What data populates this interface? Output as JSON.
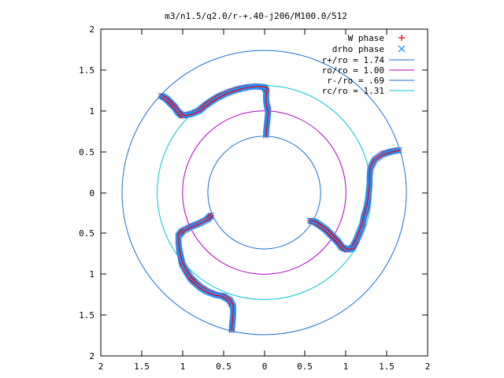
{
  "chart_data": {
    "type": "scatter",
    "title": "m3/n1.5/q2.0/r-+.40-j206/M100.0/512",
    "xlim": [
      -2,
      2
    ],
    "ylim": [
      -2,
      2
    ],
    "x_tick_labels": [
      "2",
      "1.5",
      "1",
      "0.5",
      "0",
      "0.5",
      "1",
      "1.5",
      "2"
    ],
    "x_tick_values": [
      -2,
      -1.5,
      -1,
      -0.5,
      0,
      0.5,
      1,
      1.5,
      2
    ],
    "y_tick_labels": [
      "2",
      "1.5",
      "1",
      "0.5",
      "0",
      "0.5",
      "1",
      "1.5",
      "2"
    ],
    "y_tick_values": [
      2,
      1.5,
      1,
      0.5,
      0,
      -0.5,
      -1,
      -1.5,
      -2
    ],
    "grid": false,
    "legend_position": "top-right",
    "legend": [
      {
        "label": "W phase",
        "marker": "plus",
        "color": "#ff0000"
      },
      {
        "label": "drho phase",
        "marker": "cross",
        "color": "#1e90ff"
      },
      {
        "label": "r+/ro = 1.74",
        "marker": "line",
        "color": "#1a6fd1"
      },
      {
        "label": "ro/ro = 1.00",
        "marker": "line",
        "color": "#b000c0"
      },
      {
        "label": "r-/ro = .69",
        "marker": "line",
        "color": "#1a6fd1"
      },
      {
        "label": "rc/ro = 1.31",
        "marker": "line",
        "color": "#00c8d0"
      }
    ],
    "circles": [
      {
        "name": "r+/ro",
        "radius": 1.74,
        "color": "#1a6fd1"
      },
      {
        "name": "ro/ro",
        "radius": 1.0,
        "color": "#b000c0"
      },
      {
        "name": "r-/ro",
        "radius": 0.69,
        "color": "#1a6fd1"
      },
      {
        "name": "rc/ro",
        "radius": 1.31,
        "color": "#00c8d0"
      }
    ],
    "arms": [
      [
        [
          0.02,
          0.7
        ],
        [
          0.03,
          0.8
        ],
        [
          0.04,
          0.9
        ],
        [
          0.05,
          1.0
        ],
        [
          0.03,
          1.08
        ],
        [
          0.02,
          1.16
        ],
        [
          0.03,
          1.24
        ],
        [
          0.0,
          1.29
        ],
        [
          -0.1,
          1.3
        ],
        [
          -0.2,
          1.29
        ],
        [
          -0.3,
          1.27
        ],
        [
          -0.4,
          1.24
        ],
        [
          -0.5,
          1.2
        ],
        [
          -0.58,
          1.16
        ],
        [
          -0.66,
          1.11
        ],
        [
          -0.73,
          1.06
        ],
        [
          -0.8,
          1.0
        ],
        [
          -0.9,
          0.96
        ],
        [
          -1.0,
          0.94
        ],
        [
          -1.05,
          0.98
        ],
        [
          -1.1,
          1.05
        ],
        [
          -1.15,
          1.1
        ],
        [
          -1.2,
          1.15
        ],
        [
          -1.27,
          1.19
        ]
      ],
      [
        [
          1.65,
          0.52
        ],
        [
          1.55,
          0.5
        ],
        [
          1.45,
          0.47
        ],
        [
          1.35,
          0.4
        ],
        [
          1.3,
          0.3
        ],
        [
          1.29,
          0.2
        ],
        [
          1.29,
          0.1
        ],
        [
          1.28,
          0.0
        ],
        [
          1.27,
          -0.1
        ],
        [
          1.25,
          -0.2
        ],
        [
          1.22,
          -0.3
        ],
        [
          1.2,
          -0.4
        ],
        [
          1.16,
          -0.5
        ],
        [
          1.12,
          -0.6
        ],
        [
          1.08,
          -0.68
        ],
        [
          1.02,
          -0.7
        ],
        [
          0.95,
          -0.67
        ],
        [
          0.9,
          -0.6
        ],
        [
          0.85,
          -0.55
        ],
        [
          0.8,
          -0.5
        ],
        [
          0.75,
          -0.45
        ],
        [
          0.68,
          -0.4
        ],
        [
          0.62,
          -0.36
        ],
        [
          0.55,
          -0.34
        ]
      ],
      [
        [
          -0.65,
          -0.28
        ],
        [
          -0.7,
          -0.33
        ],
        [
          -0.8,
          -0.38
        ],
        [
          -0.9,
          -0.42
        ],
        [
          -1.0,
          -0.47
        ],
        [
          -1.05,
          -0.53
        ],
        [
          -1.05,
          -0.6
        ],
        [
          -1.04,
          -0.7
        ],
        [
          -1.02,
          -0.8
        ],
        [
          -1.0,
          -0.88
        ],
        [
          -0.95,
          -0.97
        ],
        [
          -0.9,
          -1.05
        ],
        [
          -0.85,
          -1.1
        ],
        [
          -0.78,
          -1.16
        ],
        [
          -0.7,
          -1.21
        ],
        [
          -0.6,
          -1.25
        ],
        [
          -0.5,
          -1.27
        ],
        [
          -0.42,
          -1.32
        ],
        [
          -0.38,
          -1.4
        ],
        [
          -0.38,
          -1.5
        ],
        [
          -0.39,
          -1.6
        ],
        [
          -0.4,
          -1.7
        ]
      ]
    ]
  }
}
